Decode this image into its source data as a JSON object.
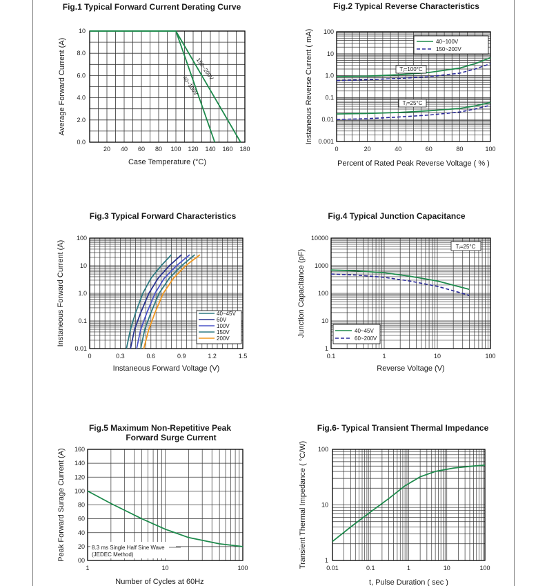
{
  "colors": {
    "green": "#1e8a4c",
    "navy": "#2a3490",
    "blue": "#4a54c8",
    "teal": "#2e7a82",
    "orange": "#f09820",
    "grid": "#333333",
    "dashed": "#2a2a9a"
  },
  "chart_data": [
    {
      "id": "fig1",
      "type": "line",
      "title": "Fig.1  Typical Forward Current Derating Curve",
      "xlabel": "Case Temperature (°C)",
      "ylabel": "Average Forward Current (A)",
      "xticks": [
        "20",
        "40",
        "60",
        "80",
        "100",
        "120",
        "140",
        "160",
        "180"
      ],
      "yticks": [
        "0.0",
        "2.0",
        "4.0",
        "6.0",
        "8.0",
        "10"
      ],
      "xlim": [
        0,
        180
      ],
      "ylim": [
        0,
        10
      ],
      "series": [
        {
          "name": "40~100V",
          "x": [
            0,
            100,
            145
          ],
          "y": [
            10,
            10,
            0
          ],
          "color": "green"
        },
        {
          "name": "150~200V",
          "x": [
            0,
            100,
            175
          ],
          "y": [
            10,
            10,
            0
          ],
          "color": "green"
        }
      ]
    },
    {
      "id": "fig2",
      "type": "line",
      "title": "Fig.2  Typical Reverse Characteristics",
      "xlabel": "Percent of Rated Peak Reverse Voltage ( % )",
      "ylabel": "Instaneous Reverse Current ( mA)",
      "xticks": [
        "0",
        "20",
        "40",
        "60",
        "80",
        "100"
      ],
      "yticks": [
        "0.001",
        "0.01",
        "0.1",
        "1.0",
        "10",
        "100"
      ],
      "xlim": [
        0,
        100
      ],
      "ylim": [
        0.001,
        100
      ],
      "yscale": "log",
      "legend": [
        "40~100V",
        "150~200V"
      ],
      "legend_position": "top-right",
      "annotations": [
        "Tⱼ=100°C",
        "Tⱼ=25°C"
      ],
      "series": [
        {
          "name": "40~100V",
          "x": [
            0,
            20,
            40,
            60,
            80,
            90,
            100
          ],
          "y": [
            0.9,
            0.95,
            1.1,
            1.4,
            2.2,
            3.5,
            6.5
          ],
          "color": "green"
        },
        {
          "name": "150~200V",
          "x": [
            0,
            20,
            40,
            60,
            80,
            90,
            100
          ],
          "y": [
            0.6,
            0.65,
            0.75,
            0.9,
            1.3,
            2.0,
            3.5
          ],
          "color": "dashed"
        },
        {
          "name": "40~100V",
          "x": [
            0,
            20,
            40,
            60,
            80,
            90,
            100
          ],
          "y": [
            0.018,
            0.019,
            0.021,
            0.025,
            0.032,
            0.042,
            0.06
          ],
          "color": "green"
        },
        {
          "name": "150~200V",
          "x": [
            0,
            20,
            40,
            60,
            80,
            90,
            100
          ],
          "y": [
            0.01,
            0.011,
            0.013,
            0.016,
            0.022,
            0.03,
            0.045
          ],
          "color": "dashed"
        }
      ]
    },
    {
      "id": "fig3",
      "type": "line",
      "title": "Fig.3  Typical Forward Characteristics",
      "xlabel": "Instaneous Forward Voltage (V)",
      "ylabel": "Instaneous Forward Current (A)",
      "xticks": [
        "0",
        "0.3",
        "0.6",
        "0.9",
        "1.2",
        "1.5"
      ],
      "yticks": [
        "0.01",
        "0.1",
        "1.0",
        "10",
        "100"
      ],
      "xlim": [
        0,
        1.5
      ],
      "ylim": [
        0.01,
        100
      ],
      "yscale": "log",
      "legend": [
        "40~45V",
        "60V",
        "100V",
        "150V",
        "200V"
      ],
      "legend_position": "bottom-right",
      "series": [
        {
          "name": "40~45V",
          "x": [
            0.36,
            0.4,
            0.45,
            0.52,
            0.6,
            0.7,
            0.8
          ],
          "y": [
            0.01,
            0.05,
            0.2,
            1.0,
            3.5,
            10,
            25
          ],
          "color": "teal"
        },
        {
          "name": "60V",
          "x": [
            0.4,
            0.44,
            0.5,
            0.58,
            0.67,
            0.78,
            0.9
          ],
          "y": [
            0.01,
            0.05,
            0.2,
            1.0,
            3.5,
            10,
            25
          ],
          "color": "navy"
        },
        {
          "name": "100V",
          "x": [
            0.46,
            0.5,
            0.56,
            0.64,
            0.73,
            0.85,
            0.98
          ],
          "y": [
            0.01,
            0.05,
            0.2,
            1.0,
            3.5,
            10,
            25
          ],
          "color": "blue"
        },
        {
          "name": "150V",
          "x": [
            0.5,
            0.54,
            0.6,
            0.68,
            0.78,
            0.9,
            1.03
          ],
          "y": [
            0.01,
            0.05,
            0.2,
            1.0,
            3.5,
            10,
            25
          ],
          "color": "teal"
        },
        {
          "name": "200V",
          "x": [
            0.53,
            0.58,
            0.64,
            0.72,
            0.82,
            0.94,
            1.08
          ],
          "y": [
            0.01,
            0.05,
            0.2,
            1.0,
            3.5,
            10,
            25
          ],
          "color": "orange"
        }
      ]
    },
    {
      "id": "fig4",
      "type": "line",
      "title": "Fig.4  Typical Junction Capacitance",
      "xlabel": "Reverse  Voltage (V)",
      "ylabel": "Junction Capacitance (pF)",
      "xticks": [
        "0.1",
        "1",
        "10",
        "100"
      ],
      "yticks": [
        "1",
        "10",
        "100",
        "1000",
        "10000"
      ],
      "xlim": [
        0.1,
        100
      ],
      "ylim": [
        1,
        10000
      ],
      "xscale": "log",
      "yscale": "log",
      "legend": [
        "40~45V",
        "60~200V"
      ],
      "legend_position": "bottom-left",
      "annotations": [
        "Tⱼ=25°C"
      ],
      "series": [
        {
          "name": "40~45V",
          "x": [
            0.1,
            0.3,
            1,
            3,
            10,
            40
          ],
          "y": [
            700,
            650,
            560,
            420,
            280,
            140
          ],
          "color": "green"
        },
        {
          "name": "60~200V",
          "x": [
            0.1,
            0.3,
            1,
            3,
            10,
            40
          ],
          "y": [
            500,
            460,
            380,
            280,
            180,
            85
          ],
          "color": "dashed"
        }
      ]
    },
    {
      "id": "fig5",
      "type": "line",
      "title": "Fig.5  Maximum Non-Repetitive Peak",
      "subtitle": "Forward Surge Current",
      "xlabel": "Number of Cycles at 60Hz",
      "ylabel": "Peak Forward Surage Current (A)",
      "xticks": [
        "1",
        "10",
        "100"
      ],
      "yticks": [
        "00",
        "20",
        "40",
        "60",
        "80",
        "100",
        "120",
        "140",
        "160"
      ],
      "xlim": [
        1,
        100
      ],
      "ylim": [
        0,
        160
      ],
      "xscale": "log",
      "legend": [
        "8.3 ms Single Half Sine Wave",
        "(JEDEC Method)"
      ],
      "legend_position": "bottom-left",
      "series": [
        {
          "name": "8.3 ms Single Half Sine Wave",
          "x": [
            1,
            2,
            5,
            10,
            20,
            50,
            100
          ],
          "y": [
            100,
            82,
            60,
            45,
            33,
            24,
            20
          ],
          "color": "green"
        }
      ]
    },
    {
      "id": "fig6",
      "type": "line",
      "title": "Fig.6- Typical Transient Thermal Impedance",
      "xlabel": "t, Pulse Duration ( sec )",
      "ylabel": "Transient Thermal Impedance ( °C/W)",
      "xticks": [
        "0.01",
        "0.1",
        "1",
        "10",
        "100"
      ],
      "yticks": [
        "1",
        "10",
        "100"
      ],
      "xlim": [
        0.01,
        100
      ],
      "ylim": [
        1,
        100
      ],
      "xscale": "log",
      "yscale": "log",
      "series": [
        {
          "x": [
            0.01,
            0.03,
            0.1,
            0.3,
            0.8,
            2,
            5,
            15,
            50,
            100
          ],
          "y": [
            2.2,
            4,
            7.5,
            13,
            22,
            32,
            40,
            46,
            50,
            52
          ],
          "color": "green"
        }
      ]
    }
  ]
}
